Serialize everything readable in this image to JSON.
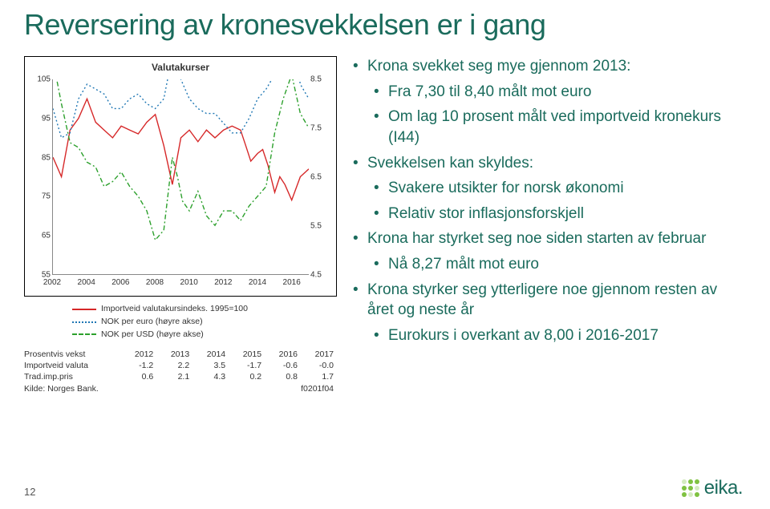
{
  "title": "Reversering av kronesvekkelsen er i gang",
  "page_number": "12",
  "logo_text": "eika.",
  "chart": {
    "title": "Valutakurser",
    "type": "line",
    "background_color": "#ffffff",
    "left_axis": {
      "min": 55,
      "max": 105,
      "step": 10
    },
    "right_axis": {
      "min": 4.5,
      "max": 8.5,
      "step": 1.0
    },
    "x_axis": {
      "min": 2002,
      "max": 2017,
      "ticks": [
        2002,
        2004,
        2006,
        2008,
        2010,
        2012,
        2014,
        2016
      ]
    },
    "series": [
      {
        "name": "Importveid valutakursindeks. 1995=100",
        "axis": "left",
        "color": "#d62728",
        "style": "solid",
        "width": 1.4,
        "points": [
          [
            2002,
            85
          ],
          [
            2002.5,
            80
          ],
          [
            2003,
            92
          ],
          [
            2003.5,
            95
          ],
          [
            2004,
            100
          ],
          [
            2004.5,
            94
          ],
          [
            2005,
            92
          ],
          [
            2005.5,
            90
          ],
          [
            2006,
            93
          ],
          [
            2006.5,
            92
          ],
          [
            2007,
            91
          ],
          [
            2007.5,
            94
          ],
          [
            2008,
            96
          ],
          [
            2008.5,
            88
          ],
          [
            2009,
            78
          ],
          [
            2009.5,
            90
          ],
          [
            2010,
            92
          ],
          [
            2010.5,
            89
          ],
          [
            2011,
            92
          ],
          [
            2011.5,
            90
          ],
          [
            2012,
            92
          ],
          [
            2012.5,
            93
          ],
          [
            2013,
            92
          ],
          [
            2013.3,
            88
          ],
          [
            2013.6,
            84
          ],
          [
            2014,
            86
          ],
          [
            2014.3,
            87
          ],
          [
            2014.6,
            83
          ],
          [
            2015,
            76
          ],
          [
            2015.3,
            80
          ],
          [
            2015.6,
            78
          ],
          [
            2016,
            74
          ],
          [
            2016.5,
            80
          ],
          [
            2017,
            82
          ]
        ]
      },
      {
        "name": "NOK per euro (høyre akse)",
        "axis": "right",
        "color": "#1f77b4",
        "style": "dotted",
        "width": 1.4,
        "points": [
          [
            2002,
            7.9
          ],
          [
            2002.5,
            7.3
          ],
          [
            2003,
            7.4
          ],
          [
            2003.5,
            8.1
          ],
          [
            2004,
            8.4
          ],
          [
            2004.5,
            8.3
          ],
          [
            2005,
            8.2
          ],
          [
            2005.5,
            7.9
          ],
          [
            2006,
            7.9
          ],
          [
            2006.5,
            8.1
          ],
          [
            2007,
            8.2
          ],
          [
            2007.5,
            8.0
          ],
          [
            2008,
            7.9
          ],
          [
            2008.5,
            8.1
          ],
          [
            2009,
            9.0
          ],
          [
            2009.2,
            8.7
          ],
          [
            2009.5,
            8.5
          ],
          [
            2010,
            8.1
          ],
          [
            2010.5,
            7.9
          ],
          [
            2011,
            7.8
          ],
          [
            2011.5,
            7.8
          ],
          [
            2012,
            7.6
          ],
          [
            2012.5,
            7.4
          ],
          [
            2013,
            7.4
          ],
          [
            2013.5,
            7.7
          ],
          [
            2014,
            8.1
          ],
          [
            2014.5,
            8.3
          ],
          [
            2015,
            8.6
          ],
          [
            2015.5,
            8.9
          ],
          [
            2016,
            9.4
          ],
          [
            2016.5,
            8.4
          ],
          [
            2017,
            8.1
          ]
        ]
      },
      {
        "name": "NOK per USD (høyre akse)",
        "axis": "right",
        "color": "#2ca02c",
        "style": "dashdot",
        "width": 1.4,
        "points": [
          [
            2002,
            8.9
          ],
          [
            2002.5,
            8.0
          ],
          [
            2003,
            7.2
          ],
          [
            2003.5,
            7.1
          ],
          [
            2004,
            6.8
          ],
          [
            2004.5,
            6.7
          ],
          [
            2005,
            6.3
          ],
          [
            2005.5,
            6.4
          ],
          [
            2006,
            6.6
          ],
          [
            2006.5,
            6.3
          ],
          [
            2007,
            6.1
          ],
          [
            2007.5,
            5.8
          ],
          [
            2008,
            5.2
          ],
          [
            2008.5,
            5.4
          ],
          [
            2009,
            6.9
          ],
          [
            2009.3,
            6.5
          ],
          [
            2009.6,
            6.0
          ],
          [
            2010,
            5.8
          ],
          [
            2010.5,
            6.2
          ],
          [
            2011,
            5.7
          ],
          [
            2011.5,
            5.5
          ],
          [
            2012,
            5.8
          ],
          [
            2012.5,
            5.8
          ],
          [
            2013,
            5.6
          ],
          [
            2013.5,
            5.9
          ],
          [
            2014,
            6.1
          ],
          [
            2014.5,
            6.3
          ],
          [
            2015,
            7.4
          ],
          [
            2015.5,
            8.1
          ],
          [
            2016,
            8.6
          ],
          [
            2016.5,
            7.8
          ],
          [
            2017,
            7.5
          ]
        ]
      }
    ]
  },
  "legend": {
    "items": [
      {
        "label": "Importveid valutakursindeks. 1995=100",
        "color": "#d62728",
        "style": "solid"
      },
      {
        "label": "NOK per euro (høyre akse)",
        "color": "#1f77b4",
        "style": "dotted"
      },
      {
        "label": "NOK per USD (høyre akse)",
        "color": "#2ca02c",
        "style": "dashed"
      }
    ]
  },
  "table": {
    "header": [
      "Prosentvis vekst",
      "2012",
      "2013",
      "2014",
      "2015",
      "2016",
      "2017"
    ],
    "rows": [
      [
        "Importveid valuta",
        "-1.2",
        "2.2",
        "3.5",
        "-1.7",
        "-0.6",
        "-0.0"
      ],
      [
        "Trad.imp.pris",
        "0.6",
        "2.1",
        "4.3",
        "0.2",
        "0.8",
        "1.7"
      ]
    ],
    "source_left": "Kilde: Norges Bank.",
    "source_right": "f0201f04"
  },
  "bullets": [
    {
      "level": 0,
      "text": "Krona svekket seg mye gjennom 2013:"
    },
    {
      "level": 1,
      "text": "Fra 7,30 til 8,40 målt mot euro"
    },
    {
      "level": 1,
      "text": "Om lag 10 prosent målt ved importveid kronekurs (I44)"
    },
    {
      "level": 0,
      "text": "Svekkelsen kan skyldes:"
    },
    {
      "level": 1,
      "text": "Svakere utsikter for norsk økonomi"
    },
    {
      "level": 1,
      "text": "Relativ stor inflasjonsforskjell"
    },
    {
      "level": 0,
      "text": "Krona har styrket seg noe siden starten av februar"
    },
    {
      "level": 1,
      "text": "Nå 8,27 målt mot euro"
    },
    {
      "level": 0,
      "text": "Krona styrker seg ytterligere noe gjennom resten av året og neste år"
    },
    {
      "level": 1,
      "text": "Eurokurs i overkant av 8,00 i 2016-2017"
    }
  ],
  "colors": {
    "title": "#1a6b5c",
    "bullet_text": "#1a6b5c",
    "logo_green": "#7fc241"
  }
}
